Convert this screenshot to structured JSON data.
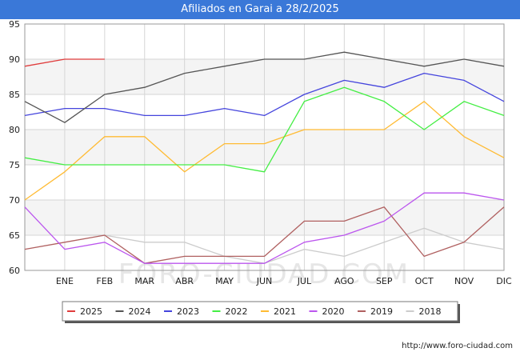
{
  "header": {
    "title": "Afiliados en Garai a 28/2/2025"
  },
  "footer": {
    "url": "http://www.foro-ciudad.com"
  },
  "watermark": "FORO-CIUDAD.COM",
  "chart_data": {
    "type": "line",
    "title": "Afiliados en Garai a 28/2/2025",
    "xlabel": "",
    "ylabel": "",
    "categories": [
      "",
      "ENE",
      "FEB",
      "MAR",
      "ABR",
      "MAY",
      "JUN",
      "JUL",
      "AGO",
      "SEP",
      "OCT",
      "NOV",
      "DIC"
    ],
    "ylim": [
      60,
      95
    ],
    "yticks": [
      60,
      65,
      70,
      75,
      80,
      85,
      90,
      95
    ],
    "grid": true,
    "legend_position": "bottom",
    "series": [
      {
        "name": "2025",
        "color": "#e03c3c",
        "values": [
          89,
          90,
          90,
          null,
          null,
          null,
          null,
          null,
          null,
          null,
          null,
          null,
          null
        ]
      },
      {
        "name": "2024",
        "color": "#555555",
        "values": [
          84,
          81,
          85,
          86,
          88,
          89,
          90,
          90,
          91,
          90,
          89,
          90,
          89
        ]
      },
      {
        "name": "2023",
        "color": "#4444dd",
        "values": [
          82,
          83,
          83,
          82,
          82,
          83,
          82,
          85,
          87,
          86,
          88,
          87,
          84
        ]
      },
      {
        "name": "2022",
        "color": "#44ee44",
        "values": [
          76,
          75,
          75,
          75,
          75,
          75,
          74,
          84,
          86,
          84,
          80,
          84,
          82
        ]
      },
      {
        "name": "2021",
        "color": "#ffbb33",
        "values": [
          70,
          74,
          79,
          79,
          74,
          78,
          78,
          80,
          80,
          80,
          84,
          79,
          76
        ]
      },
      {
        "name": "2020",
        "color": "#bb55ee",
        "values": [
          69,
          63,
          64,
          61,
          61,
          61,
          61,
          64,
          65,
          67,
          71,
          71,
          70
        ]
      },
      {
        "name": "2019",
        "color": "#b06060",
        "values": [
          63,
          64,
          65,
          61,
          62,
          62,
          62,
          67,
          67,
          69,
          62,
          64,
          69
        ]
      },
      {
        "name": "2018",
        "color": "#cccccc",
        "values": [
          null,
          65,
          65,
          64,
          64,
          62,
          61,
          63,
          62,
          64,
          66,
          64,
          63
        ]
      }
    ]
  }
}
